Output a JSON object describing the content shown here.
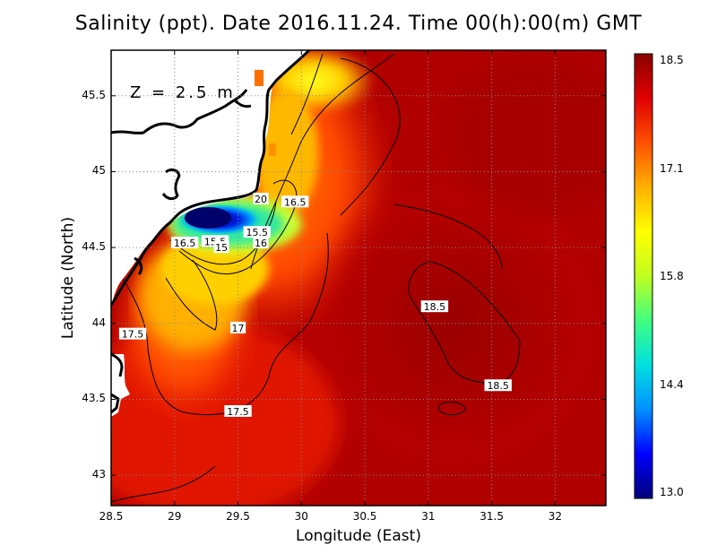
{
  "title": "Salinity (ppt). Date 2016.11.24. Time 00(h):00(m) GMT",
  "depth_label": "Z = 2.5 m",
  "axes": {
    "xlabel": "Longitude (East)",
    "ylabel": "Latitude (North)",
    "xticks": [
      "28.5",
      "29",
      "29.5",
      "30",
      "30.5",
      "31",
      "31.5",
      "32"
    ],
    "yticks": [
      "45.5",
      "45",
      "44.5",
      "44",
      "43.5",
      "43"
    ],
    "xlim": [
      28.5,
      32.4
    ],
    "ylim": [
      42.8,
      45.8
    ]
  },
  "colorbar": {
    "labels": [
      "18.5",
      "17.1",
      "15.8",
      "14.4",
      "13.0"
    ],
    "min": 13.0,
    "max": 18.5,
    "colors": [
      "#00007a",
      "#0000ff",
      "#0090ff",
      "#00e0e0",
      "#40ff80",
      "#c0ff20",
      "#ffff00",
      "#ffb000",
      "#ff5000",
      "#e00000",
      "#8a0000"
    ]
  },
  "contour_labels": [
    {
      "text": "16.5",
      "lon": 29.95,
      "lat": 44.8
    },
    {
      "text": "15.5",
      "lon": 29.65,
      "lat": 44.6
    },
    {
      "text": "16",
      "lon": 29.68,
      "lat": 44.53
    },
    {
      "text": "16.5",
      "lon": 29.08,
      "lat": 44.53
    },
    {
      "text": "15.5",
      "lon": 29.32,
      "lat": 44.54
    },
    {
      "text": "15",
      "lon": 29.37,
      "lat": 44.5
    },
    {
      "text": "17",
      "lon": 29.5,
      "lat": 43.97
    },
    {
      "text": "17.5",
      "lon": 28.67,
      "lat": 43.93
    },
    {
      "text": "17.5",
      "lon": 29.5,
      "lat": 43.42
    },
    {
      "text": "18.5",
      "lon": 31.05,
      "lat": 44.11
    },
    {
      "text": "18.5",
      "lon": 31.55,
      "lat": 43.59
    },
    {
      "text": "20",
      "lon": 29.68,
      "lat": 44.82
    }
  ],
  "colors": {
    "land": "#ffffff",
    "coast": "#000000",
    "sea_high": "#a30000"
  }
}
